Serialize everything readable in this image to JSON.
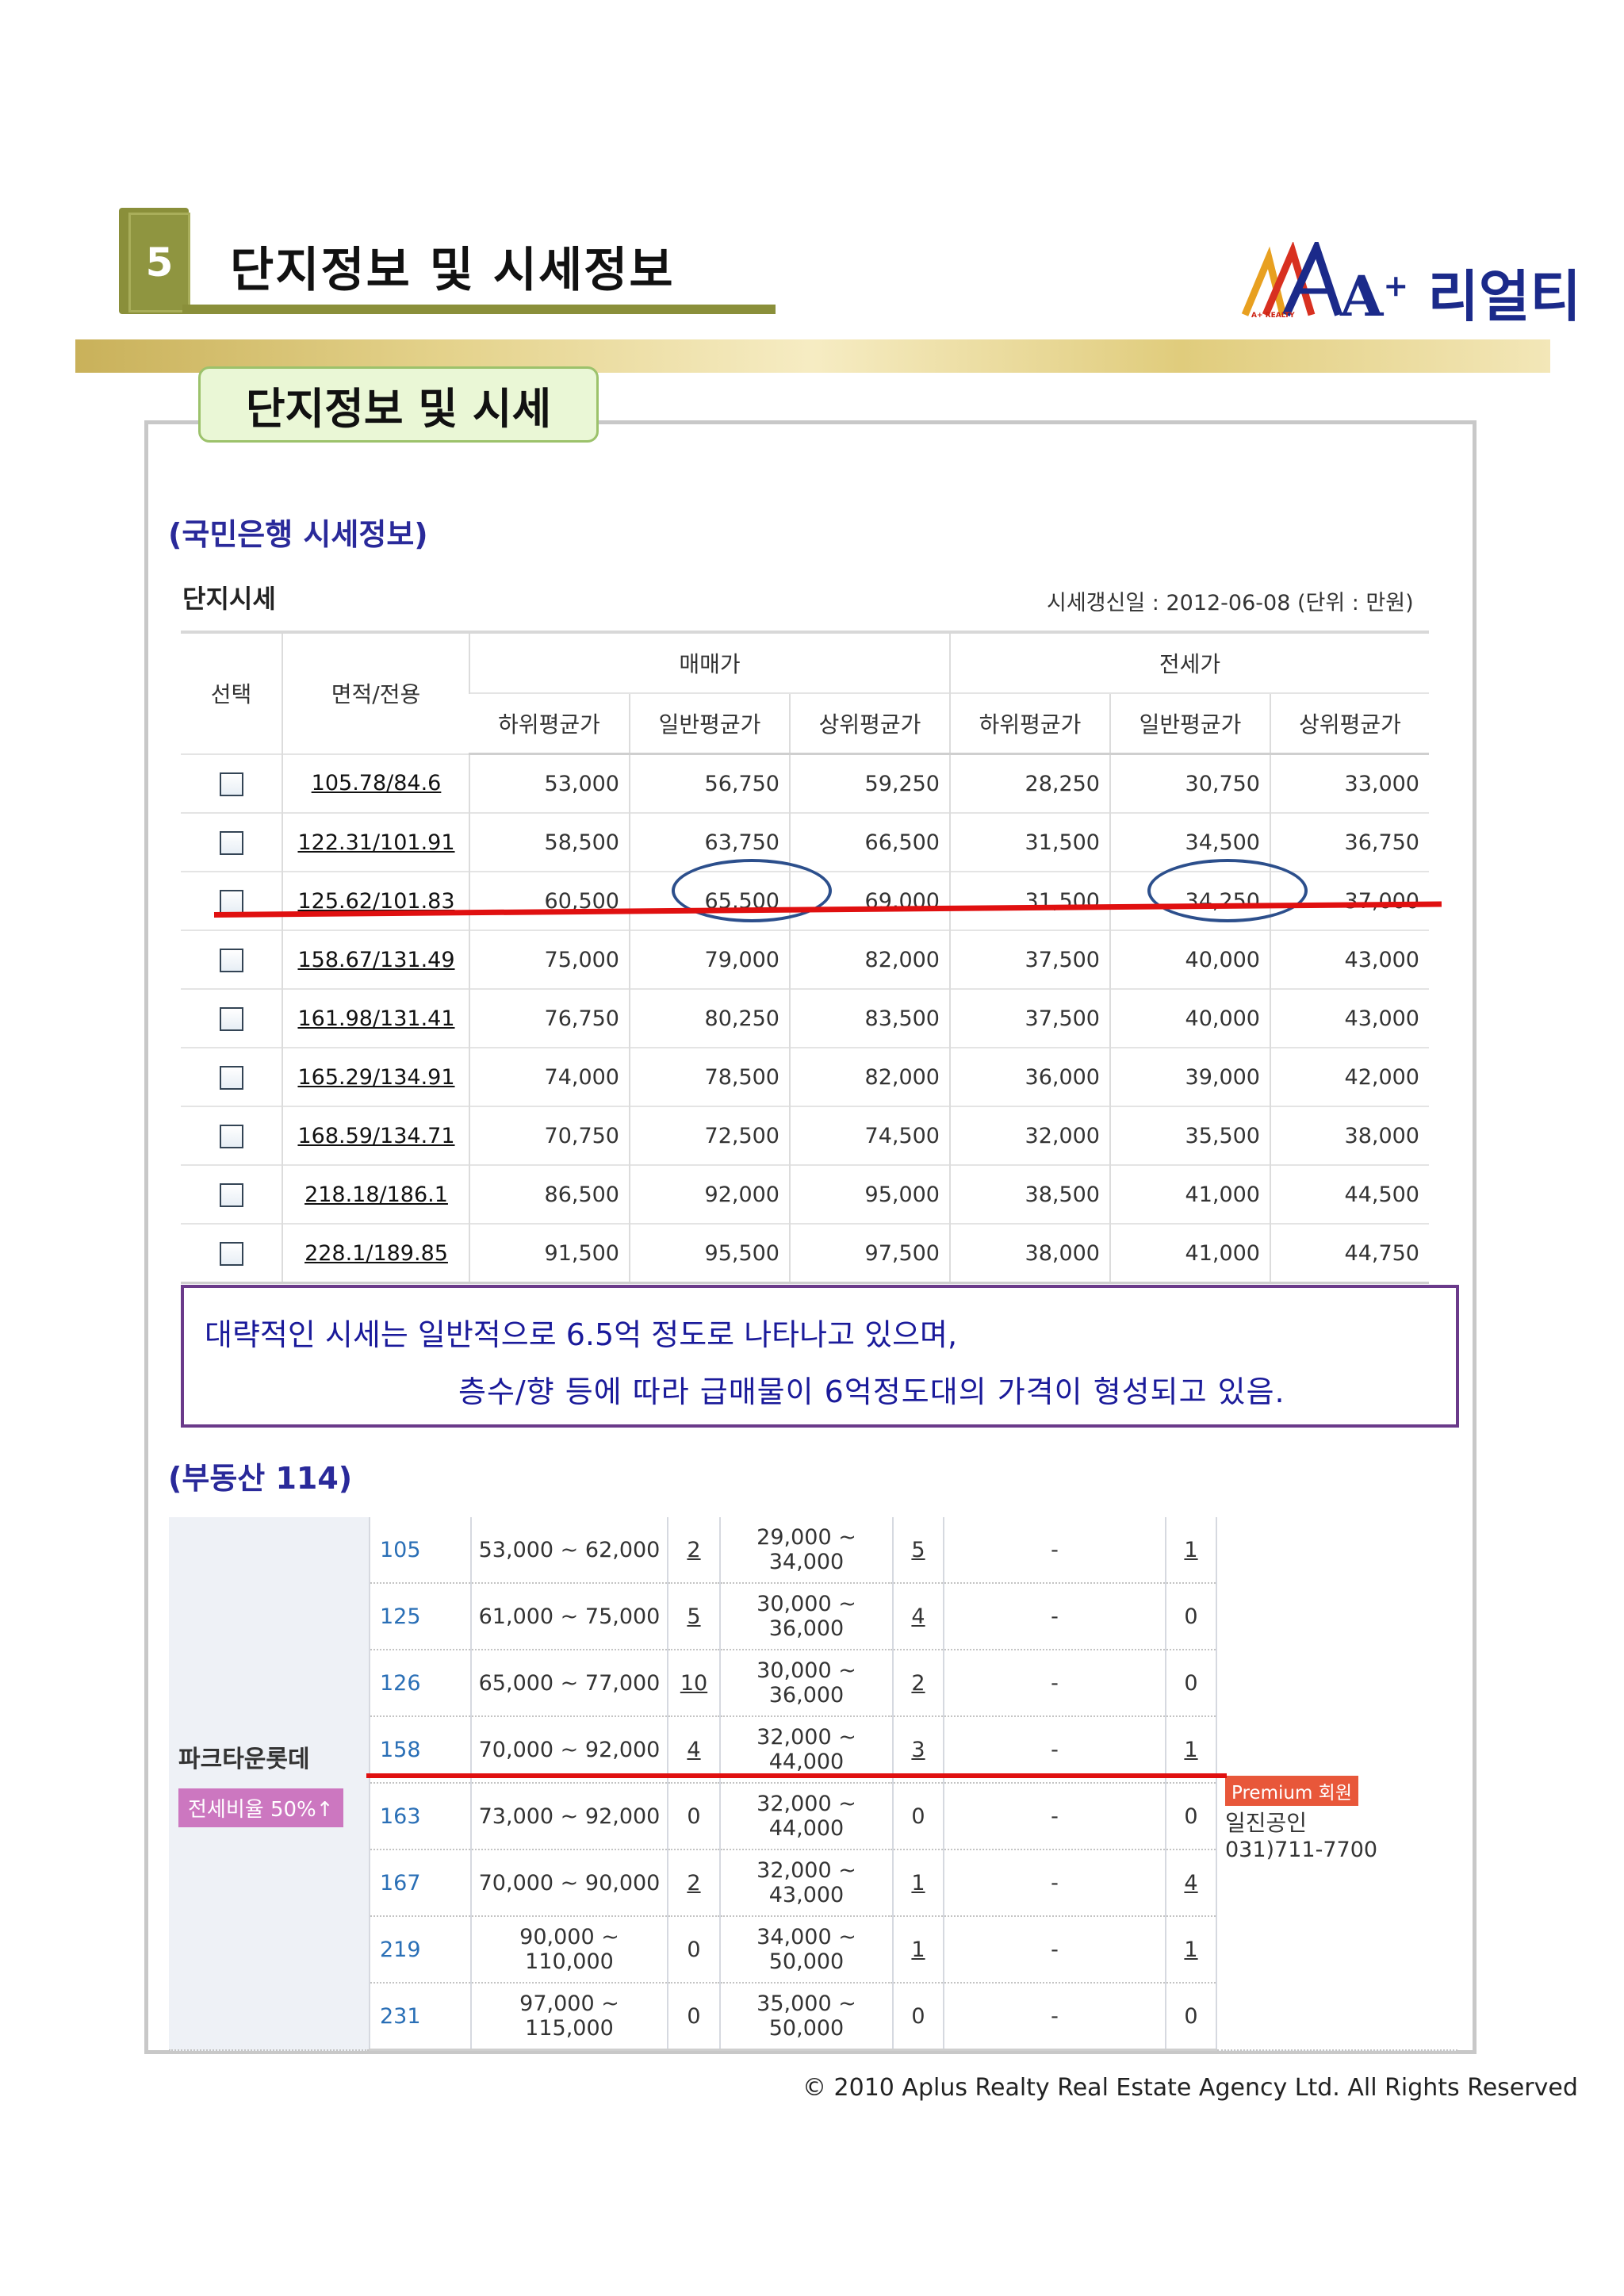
{
  "header": {
    "section_number": "5",
    "section_title": "단지정보 및 시세정보",
    "logo_text": "A",
    "logo_sup": "+",
    "logo_name": "리얼티",
    "logo_sub": "A+ REALTY"
  },
  "panel": {
    "tab_label": "단지정보 및 시세",
    "kb_heading": "(국민은행 시세정보)",
    "kb_table_title": "단지시세",
    "kb_update": "시세갱신일 : 2012-06-08 (단위 : 만원)",
    "bds_heading": "(부동산 114)"
  },
  "kb_table": {
    "col_select": "선택",
    "col_area": "면적/전용",
    "group_sale": "매매가",
    "group_jeonse": "전세가",
    "sub_cols": [
      "하위평균가",
      "일반평균가",
      "상위평균가",
      "하위평균가",
      "일반평균가",
      "상위평균가"
    ],
    "rows": [
      {
        "area": "105.78/84.6",
        "v": [
          "53,000",
          "56,750",
          "59,250",
          "28,250",
          "30,750",
          "33,000"
        ]
      },
      {
        "area": "122.31/101.91",
        "v": [
          "58,500",
          "63,750",
          "66,500",
          "31,500",
          "34,500",
          "36,750"
        ]
      },
      {
        "area": "125.62/101.83",
        "v": [
          "60,500",
          "65,500",
          "69,000",
          "31,500",
          "34,250",
          "37,000"
        ]
      },
      {
        "area": "158.67/131.49",
        "v": [
          "75,000",
          "79,000",
          "82,000",
          "37,500",
          "40,000",
          "43,000"
        ]
      },
      {
        "area": "161.98/131.41",
        "v": [
          "76,750",
          "80,250",
          "83,500",
          "37,500",
          "40,000",
          "43,000"
        ]
      },
      {
        "area": "165.29/134.91",
        "v": [
          "74,000",
          "78,500",
          "82,000",
          "36,000",
          "39,000",
          "42,000"
        ]
      },
      {
        "area": "168.59/134.71",
        "v": [
          "70,750",
          "72,500",
          "74,500",
          "32,000",
          "35,500",
          "38,000"
        ]
      },
      {
        "area": "218.18/186.1",
        "v": [
          "86,500",
          "92,000",
          "95,000",
          "38,500",
          "41,000",
          "44,500"
        ]
      },
      {
        "area": "228.1/189.85",
        "v": [
          "91,500",
          "95,500",
          "97,500",
          "38,000",
          "41,000",
          "44,750"
        ]
      }
    ]
  },
  "note": {
    "line1": "대략적인 시세는 일반적으로 6.5억 정도로 나타나고 있으며,",
    "line2": "층수/향 등에 따라  급매물이  6억정도대의  가격이 형성되고 있음."
  },
  "bds_table": {
    "complex_name": "파크타운롯데",
    "ratio_badge": "전세비율 50%↑",
    "premium_badge": "Premium 회원",
    "agent_name": "일진공인",
    "agent_phone": "031)711-7700",
    "rows": [
      {
        "area": "105",
        "sale": "53,000 ~ 62,000",
        "sale_cnt": "2",
        "jeonse": "29,000 ~ 34,000",
        "jeonse_cnt": "5",
        "monthly": "-",
        "monthly_cnt": "1"
      },
      {
        "area": "125",
        "sale": "61,000 ~ 75,000",
        "sale_cnt": "5",
        "jeonse": "30,000 ~ 36,000",
        "jeonse_cnt": "4",
        "monthly": "-",
        "monthly_cnt": "0"
      },
      {
        "area": "126",
        "sale": "65,000 ~ 77,000",
        "sale_cnt": "10",
        "jeonse": "30,000 ~ 36,000",
        "jeonse_cnt": "2",
        "monthly": "-",
        "monthly_cnt": "0"
      },
      {
        "area": "158",
        "sale": "70,000 ~ 92,000",
        "sale_cnt": "4",
        "jeonse": "32,000 ~ 44,000",
        "jeonse_cnt": "3",
        "monthly": "-",
        "monthly_cnt": "1"
      },
      {
        "area": "163",
        "sale": "73,000 ~ 92,000",
        "sale_cnt": "0",
        "jeonse": "32,000 ~ 44,000",
        "jeonse_cnt": "0",
        "monthly": "-",
        "monthly_cnt": "0"
      },
      {
        "area": "167",
        "sale": "70,000 ~ 90,000",
        "sale_cnt": "2",
        "jeonse": "32,000 ~ 43,000",
        "jeonse_cnt": "1",
        "monthly": "-",
        "monthly_cnt": "4"
      },
      {
        "area": "219",
        "sale": "90,000 ~ 110,000",
        "sale_cnt": "0",
        "jeonse": "34,000 ~ 50,000",
        "jeonse_cnt": "1",
        "monthly": "-",
        "monthly_cnt": "1"
      },
      {
        "area": "231",
        "sale": "97,000 ~ 115,000",
        "sale_cnt": "0",
        "jeonse": "35,000 ~ 50,000",
        "jeonse_cnt": "0",
        "monthly": "-",
        "monthly_cnt": "0"
      }
    ]
  },
  "footer": {
    "copyright": "© 2010 Aplus Realty Real Estate Agency Ltd. All Rights Reserved"
  },
  "colors": {
    "accent_olive": "#8a8f3a",
    "heading_blue": "#2a2a9a",
    "highlight_red": "#e01010",
    "circle_blue": "#2c4f8c",
    "note_border": "#6a3a8a"
  }
}
